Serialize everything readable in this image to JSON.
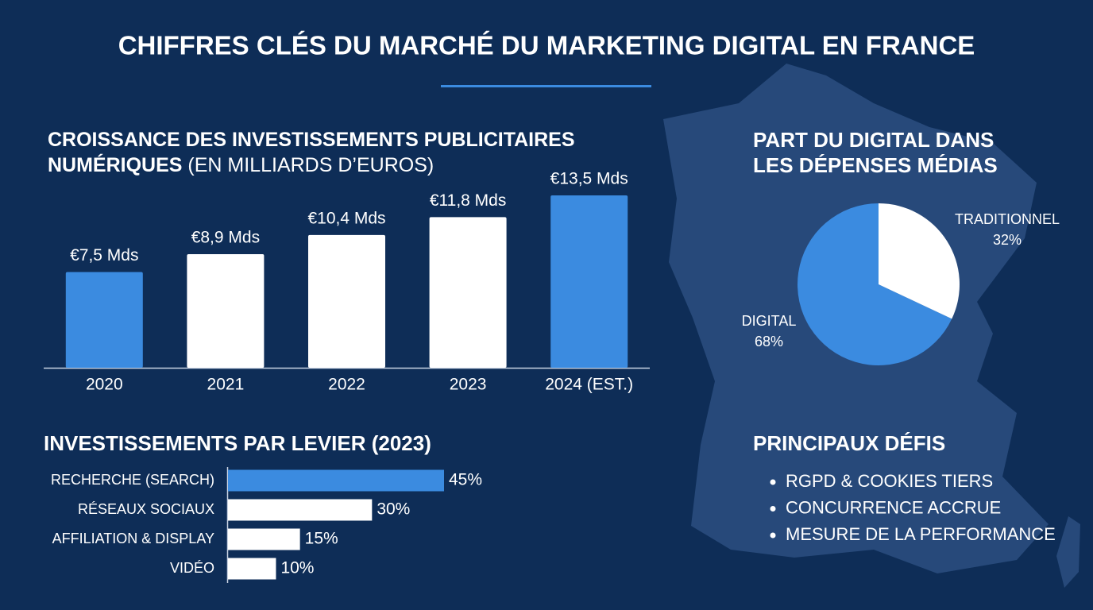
{
  "title": "CHIFFRES CLÉS DU MARCHÉ DU MARKETING DIGITAL EN FRANCE",
  "chart_data": [
    {
      "type": "bar",
      "title": "CROISSANCE DES INVESTISSEMENTS PUBLICITAIRES NUMÉRIQUES",
      "subtitle": "(EN MILLIARDS D’EUROS)",
      "categories": [
        "2020",
        "2021",
        "2022",
        "2023",
        "2024 (EST.)"
      ],
      "values": [
        7.5,
        8.9,
        10.4,
        11.8,
        13.5
      ],
      "value_labels": [
        "€7,5 Mds",
        "€8,9 Mds",
        "€10,4 Mds",
        "€11,8 Mds",
        "€13,5 Mds"
      ],
      "colors": [
        "#3b8be0",
        "#ffffff",
        "#ffffff",
        "#ffffff",
        "#3b8be0"
      ]
    },
    {
      "type": "hbar",
      "title": "INVESTISSEMENTS PAR LEVIER (2023)",
      "categories": [
        "RECHERCHE (SEARCH)",
        "RÉSEAUX SOCIAUX",
        "AFFILIATION & DISPLAY",
        "VIDÉO"
      ],
      "values": [
        45,
        30,
        15,
        10
      ],
      "value_labels": [
        "45%",
        "30%",
        "15%",
        "10%"
      ],
      "colors": [
        "#3b8be0",
        "#ffffff",
        "#ffffff",
        "#ffffff"
      ]
    },
    {
      "type": "pie",
      "title": "PART DU DIGITAL DANS LES DÉPENSES MÉDIAS",
      "categories": [
        "DIGITAL",
        "TRADITIONNEL"
      ],
      "values": [
        68,
        32
      ],
      "value_labels": [
        "68%",
        "32%"
      ],
      "colors": [
        "#3b8be0",
        "#ffffff"
      ]
    }
  ],
  "challenges": {
    "title": "PRINCIPAUX DÉFIS",
    "items": [
      "RGPD & COOKIES TIERS",
      "CONCURRENCE ACCRUE",
      "MESURE DE LA PERFORMANCE"
    ]
  }
}
